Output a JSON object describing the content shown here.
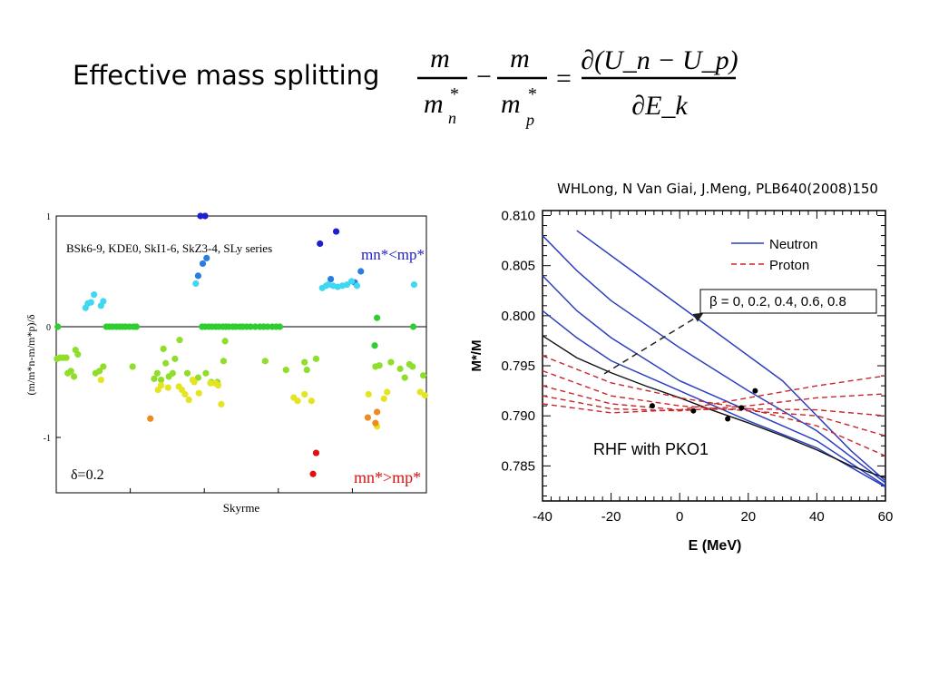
{
  "slide": {
    "title": "Effective mass splitting",
    "citation": "WHLong, N Van Giai, J.Meng, PLB640(2008)150",
    "formula": {
      "lhs1_num": "m",
      "lhs1_den": "m",
      "lhs1_sub": "n",
      "lhs2_num": "m",
      "lhs2_den": "m",
      "lhs2_sub": "p",
      "star": "*",
      "minus": "−",
      "equals": "=",
      "rhs_num": "∂(U_n − U_p)",
      "rhs_den": "∂E_k"
    }
  },
  "chart_data": [
    {
      "type": "scatter",
      "title": "BSk6-9, KDE0, SkI1-6, SkZ3-4, SLy series",
      "xlabel": "Skyrme",
      "ylabel": "(m/m*n-m/m*p)/δ",
      "xlim": [
        0,
        48
      ],
      "ylim": [
        -1.5,
        1
      ],
      "yticks": [
        "1",
        "0",
        "-1"
      ],
      "annotations": {
        "top": "mn*<mp*",
        "bottom": "mn*>mp*",
        "delta": "δ=0.2"
      },
      "series": [
        {
          "name": "blue",
          "color": "#1f1fd0",
          "points": [
            [
              18.7,
              1
            ],
            [
              19.3,
              1
            ],
            [
              34.2,
              0.75
            ],
            [
              36.3,
              0.86
            ]
          ]
        },
        {
          "name": "mid-blue",
          "color": "#2a7de0",
          "points": [
            [
              18.4,
              0.46
            ],
            [
              19,
              0.57
            ],
            [
              19.5,
              0.62
            ],
            [
              35.6,
              0.43
            ],
            [
              38.7,
              0.4
            ],
            [
              39.5,
              0.5
            ]
          ]
        },
        {
          "name": "cyan",
          "color": "#3fd8f0",
          "points": [
            [
              3.8,
              0.17
            ],
            [
              4.1,
              0.21
            ],
            [
              4.5,
              0.22
            ],
            [
              4.9,
              0.29
            ],
            [
              5.8,
              0.19
            ],
            [
              6.1,
              0.23
            ],
            [
              18.1,
              0.39
            ],
            [
              34.5,
              0.35
            ],
            [
              35,
              0.37
            ],
            [
              35.3,
              0.38
            ],
            [
              35.9,
              0.37
            ],
            [
              36.5,
              0.36
            ],
            [
              37.1,
              0.37
            ],
            [
              37.7,
              0.38
            ],
            [
              38.3,
              0.41
            ],
            [
              39,
              0.37
            ],
            [
              46.4,
              0.38
            ]
          ]
        },
        {
          "name": "green",
          "color": "#2fce2f",
          "points": [
            [
              0.2,
              0
            ],
            [
              6.5,
              0
            ],
            [
              6.9,
              0
            ],
            [
              7.3,
              0
            ],
            [
              7.8,
              0
            ],
            [
              8.2,
              0
            ],
            [
              8.6,
              0
            ],
            [
              9,
              0
            ],
            [
              9.5,
              0
            ],
            [
              10,
              0
            ],
            [
              10.4,
              0
            ],
            [
              18.9,
              0
            ],
            [
              19.3,
              0
            ],
            [
              19.8,
              0
            ],
            [
              20.2,
              0
            ],
            [
              20.7,
              0
            ],
            [
              21.1,
              0
            ],
            [
              21.6,
              0
            ],
            [
              22,
              0
            ],
            [
              22.4,
              0
            ],
            [
              22.9,
              0
            ],
            [
              23.3,
              0
            ],
            [
              23.8,
              0
            ],
            [
              24.2,
              0
            ],
            [
              24.7,
              0
            ],
            [
              25.2,
              0
            ],
            [
              25.8,
              0
            ],
            [
              26.4,
              0
            ],
            [
              26.9,
              0
            ],
            [
              27.4,
              0
            ],
            [
              28,
              0
            ],
            [
              28.5,
              0
            ],
            [
              29,
              0
            ],
            [
              41.3,
              -0.17
            ],
            [
              41.6,
              0.08
            ],
            [
              46.3,
              0
            ]
          ]
        },
        {
          "name": "yellow-green",
          "color": "#8ede2a",
          "points": [
            [
              0.1,
              -0.29
            ],
            [
              0.5,
              -0.28
            ],
            [
              0.9,
              -0.28
            ],
            [
              1.3,
              -0.28
            ],
            [
              1.5,
              -0.42
            ],
            [
              1.9,
              -0.4
            ],
            [
              2.3,
              -0.45
            ],
            [
              2.5,
              -0.21
            ],
            [
              2.8,
              -0.25
            ],
            [
              5.1,
              -0.42
            ],
            [
              5.6,
              -0.4
            ],
            [
              6.1,
              -0.36
            ],
            [
              9.9,
              -0.36
            ],
            [
              12.7,
              -0.47
            ],
            [
              13.1,
              -0.42
            ],
            [
              13.6,
              -0.48
            ],
            [
              13.9,
              -0.2
            ],
            [
              14.2,
              -0.33
            ],
            [
              14.6,
              -0.45
            ],
            [
              15.1,
              -0.42
            ],
            [
              15.4,
              -0.29
            ],
            [
              16,
              -0.12
            ],
            [
              17,
              -0.42
            ],
            [
              18.4,
              -0.46
            ],
            [
              19.4,
              -0.42
            ],
            [
              20.1,
              -0.5
            ],
            [
              20.9,
              -0.5
            ],
            [
              21.7,
              -0.31
            ],
            [
              21.9,
              -0.13
            ],
            [
              27.1,
              -0.31
            ],
            [
              29.8,
              -0.39
            ],
            [
              32.2,
              -0.32
            ],
            [
              32.5,
              -0.39
            ],
            [
              33.7,
              -0.29
            ],
            [
              41.4,
              -0.36
            ],
            [
              41.9,
              -0.35
            ],
            [
              43.4,
              -0.32
            ],
            [
              44.6,
              -0.38
            ],
            [
              45.2,
              -0.46
            ],
            [
              45.8,
              -0.34
            ],
            [
              46.2,
              -0.36
            ],
            [
              47.6,
              -0.44
            ]
          ]
        },
        {
          "name": "yellow",
          "color": "#e4e422",
          "points": [
            [
              5.8,
              -0.48
            ],
            [
              13.2,
              -0.57
            ],
            [
              13.6,
              -0.53
            ],
            [
              14.5,
              -0.55
            ],
            [
              15.9,
              -0.54
            ],
            [
              16.3,
              -0.57
            ],
            [
              16.7,
              -0.61
            ],
            [
              17.2,
              -0.66
            ],
            [
              17.7,
              -0.48
            ],
            [
              17.9,
              -0.5
            ],
            [
              18.5,
              -0.6
            ],
            [
              20,
              -0.51
            ],
            [
              20.6,
              -0.51
            ],
            [
              21,
              -0.53
            ],
            [
              21.4,
              -0.7
            ],
            [
              30.8,
              -0.64
            ],
            [
              31.3,
              -0.67
            ],
            [
              32.2,
              -0.61
            ],
            [
              33.1,
              -0.67
            ],
            [
              40.5,
              -0.61
            ],
            [
              41.6,
              -0.9
            ],
            [
              42.5,
              -0.65
            ],
            [
              42.9,
              -0.59
            ],
            [
              47.2,
              -0.59
            ],
            [
              47.8,
              -0.62
            ]
          ]
        },
        {
          "name": "orange",
          "color": "#f08a1a",
          "points": [
            [
              12.2,
              -0.83
            ],
            [
              40.4,
              -0.82
            ],
            [
              41.6,
              -0.77
            ],
            [
              41.4,
              -0.87
            ]
          ]
        },
        {
          "name": "red",
          "color": "#e01010",
          "points": [
            [
              33.3,
              -1.33
            ],
            [
              33.7,
              -1.14
            ]
          ]
        }
      ]
    },
    {
      "type": "line",
      "xlabel": "E (MeV)",
      "ylabel": "M*/M",
      "xlim": [
        -40,
        60
      ],
      "ylim": [
        0.7815,
        0.8105
      ],
      "xticks": [
        "-40",
        "-20",
        "0",
        "20",
        "40",
        "60"
      ],
      "yticks": [
        "0.810",
        "0.805",
        "0.800",
        "0.795",
        "0.790",
        "0.785"
      ],
      "legend": {
        "position": "top-right",
        "entries": [
          "Neutron",
          "Proton"
        ]
      },
      "beta_label": "β = 0, 0.2, 0.4, 0.6, 0.8",
      "annotation": "RHF with PKO1",
      "series": [
        {
          "name": "Neutron β=0.8",
          "style": "neutron",
          "x": [
            -30,
            -10,
            10,
            30,
            50,
            60
          ],
          "y": [
            0.8085,
            0.8035,
            0.7985,
            0.7935,
            0.7865,
            0.7835
          ]
        },
        {
          "name": "Neutron β=0.6",
          "style": "neutron",
          "x": [
            -40,
            -30,
            -20,
            0,
            20,
            40,
            60
          ],
          "y": [
            0.808,
            0.8045,
            0.8015,
            0.7968,
            0.7925,
            0.7885,
            0.7833
          ]
        },
        {
          "name": "Neutron β=0.4",
          "style": "neutron",
          "x": [
            -40,
            -30,
            -20,
            0,
            20,
            40,
            60
          ],
          "y": [
            0.804,
            0.8005,
            0.7978,
            0.7935,
            0.7905,
            0.7875,
            0.783
          ]
        },
        {
          "name": "Neutron β=0.2",
          "style": "neutron",
          "x": [
            -40,
            -30,
            -20,
            0,
            20,
            40,
            60
          ],
          "y": [
            0.8005,
            0.7978,
            0.7955,
            0.7925,
            0.7895,
            0.7868,
            0.7829
          ]
        },
        {
          "name": "β=0",
          "style": "black",
          "x": [
            -40,
            -30,
            -20,
            -10,
            0,
            10,
            20,
            30,
            40,
            50,
            60
          ],
          "y": [
            0.798,
            0.7958,
            0.7943,
            0.793,
            0.7918,
            0.7905,
            0.7893,
            0.788,
            0.7866,
            0.785,
            0.7838
          ]
        },
        {
          "name": "Proton β=0.2",
          "style": "proton",
          "x": [
            -40,
            -20,
            0,
            20,
            40,
            60
          ],
          "y": [
            0.796,
            0.7933,
            0.7918,
            0.7907,
            0.789,
            0.786
          ]
        },
        {
          "name": "Proton β=0.4",
          "style": "proton",
          "x": [
            -40,
            -20,
            0,
            20,
            40,
            60
          ],
          "y": [
            0.7945,
            0.792,
            0.791,
            0.7905,
            0.79,
            0.788
          ]
        },
        {
          "name": "Proton β=0.6",
          "style": "proton",
          "x": [
            -40,
            -20,
            0,
            20,
            40,
            60
          ],
          "y": [
            0.793,
            0.7912,
            0.7906,
            0.7907,
            0.7906,
            0.79
          ]
        },
        {
          "name": "Proton β=0.8",
          "style": "proton",
          "x": [
            -40,
            -20,
            0,
            20,
            40,
            60
          ],
          "y": [
            0.792,
            0.7907,
            0.7905,
            0.791,
            0.7918,
            0.7922
          ]
        },
        {
          "name": "Proton β=1",
          "style": "proton",
          "x": [
            -40,
            -20,
            0,
            20,
            40,
            60
          ],
          "y": [
            0.7912,
            0.7903,
            0.7906,
            0.7918,
            0.793,
            0.794
          ]
        }
      ],
      "crossings": [
        [
          -8,
          0.791
        ],
        [
          4,
          0.7905
        ],
        [
          14,
          0.7897
        ],
        [
          18,
          0.7908
        ],
        [
          22,
          0.7925
        ]
      ],
      "arrow": {
        "from": [
          -22,
          0.7942
        ],
        "to": [
          7,
          0.8003
        ]
      }
    }
  ]
}
